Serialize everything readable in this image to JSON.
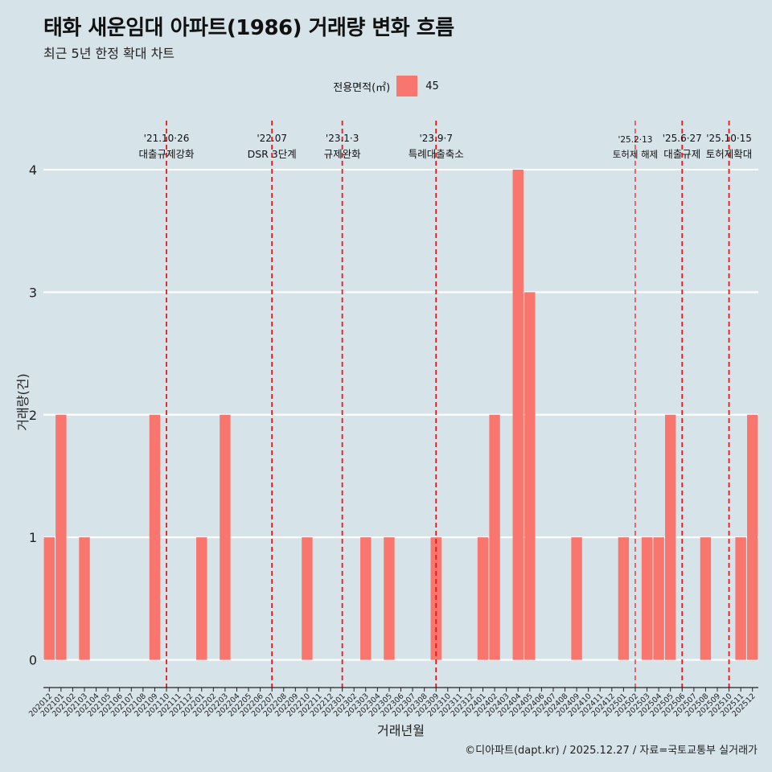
{
  "title": "태화 새운임대 아파트(1986) 거래량 변화 흐름",
  "subtitle": "최근 5년 한정 확대 차트",
  "caption": "©디아파트(dapt.kr) / 2025.12.27 / 자료=국토교통부 실거래가",
  "legend": {
    "title": "전용면적(㎡)",
    "entries": [
      {
        "label": "45",
        "color": "#f8766d"
      }
    ]
  },
  "colors": {
    "background": "#d6e3e9",
    "bar": "#f8766d",
    "event_line": "#e8191a",
    "grid": "#ffffff"
  },
  "chart_data": {
    "type": "bar",
    "xlabel": "거래년월",
    "ylabel": "거래량(건)",
    "ylim": [
      -0.18,
      4.4
    ],
    "yticks": [
      0,
      1,
      2,
      3,
      4
    ],
    "categories": [
      "202012",
      "202101",
      "202102",
      "202103",
      "202104",
      "202105",
      "202106",
      "202107",
      "202108",
      "202109",
      "202110",
      "202111",
      "202112",
      "202201",
      "202202",
      "202203",
      "202204",
      "202205",
      "202206",
      "202207",
      "202208",
      "202209",
      "202210",
      "202211",
      "202212",
      "202301",
      "202302",
      "202303",
      "202304",
      "202305",
      "202306",
      "202307",
      "202308",
      "202309",
      "202310",
      "202311",
      "202312",
      "202401",
      "202402",
      "202403",
      "202404",
      "202405",
      "202406",
      "202407",
      "202408",
      "202409",
      "202410",
      "202411",
      "202412",
      "202501",
      "202502",
      "202503",
      "202504",
      "202505",
      "202506",
      "202507",
      "202508",
      "202509",
      "202510",
      "202511",
      "202512"
    ],
    "series": [
      {
        "name": "45",
        "values": [
          1,
          2,
          0,
          1,
          0,
          0,
          0,
          0,
          0,
          2,
          0,
          0,
          0,
          1,
          0,
          2,
          0,
          0,
          0,
          0,
          0,
          0,
          1,
          0,
          0,
          0,
          0,
          1,
          0,
          1,
          0,
          0,
          0,
          1,
          0,
          0,
          0,
          1,
          2,
          0,
          4,
          3,
          0,
          0,
          0,
          1,
          0,
          0,
          0,
          1,
          0,
          1,
          1,
          2,
          0,
          0,
          1,
          0,
          0,
          1,
          2
        ]
      }
    ],
    "events": [
      {
        "date": "'21.10·26",
        "label": "대출규제강화",
        "at": "202110",
        "small": false
      },
      {
        "date": "'22.07",
        "label": "DSR 3단계",
        "at": "202207",
        "small": false
      },
      {
        "date": "'23.1·3",
        "label": "규제완화",
        "at": "202301",
        "small": false
      },
      {
        "date": "'23.9·7",
        "label": "특례대출축소",
        "at": "202309",
        "small": false
      },
      {
        "date": "'25.2·13",
        "label": "토허제 해제",
        "at": "202502",
        "small": true
      },
      {
        "date": "'25.6·27",
        "label": "대출규제",
        "at": "202506",
        "small": false
      },
      {
        "date": "'25.10·15",
        "label": "토허제확대",
        "at": "202510",
        "small": false
      }
    ]
  }
}
